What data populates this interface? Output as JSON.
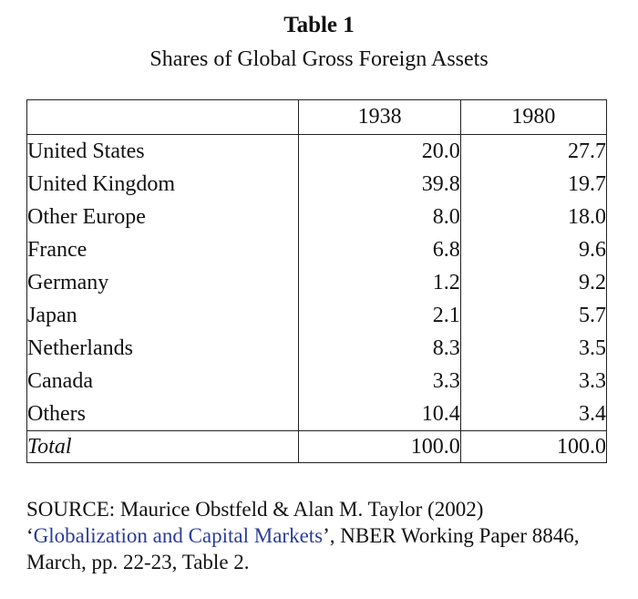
{
  "title": "Table 1",
  "subtitle": "Shares of Global Gross Foreign Assets",
  "table": {
    "columns": [
      "",
      "1938",
      "1980"
    ],
    "rows": [
      {
        "label": "United States",
        "v1938": "20.0",
        "v1980": "27.7"
      },
      {
        "label": "United Kingdom",
        "v1938": "39.8",
        "v1980": "19.7"
      },
      {
        "label": "Other Europe",
        "v1938": "8.0",
        "v1980": "18.0"
      },
      {
        "label": "France",
        "v1938": "6.8",
        "v1980": "9.6"
      },
      {
        "label": "Germany",
        "v1938": "1.2",
        "v1980": "9.2"
      },
      {
        "label": "Japan",
        "v1938": "2.1",
        "v1980": "5.7"
      },
      {
        "label": "Netherlands",
        "v1938": "8.3",
        "v1980": "3.5"
      },
      {
        "label": "Canada",
        "v1938": "3.3",
        "v1980": "3.3"
      },
      {
        "label": "Others",
        "v1938": "10.4",
        "v1980": "3.4"
      }
    ],
    "total": {
      "label": "Total",
      "v1938": "100.0",
      "v1980": "100.0"
    }
  },
  "source": {
    "line1": "SOURCE: Maurice Obstfeld & Alan M. Taylor (2002)",
    "open_quote": "‘",
    "title": "Globalization and Capital Markets",
    "after_title": "’, NBER Working Paper 8846,",
    "line3": "March, pp. 22-23, Table 2.",
    "title_color": "#2a3c9a"
  }
}
